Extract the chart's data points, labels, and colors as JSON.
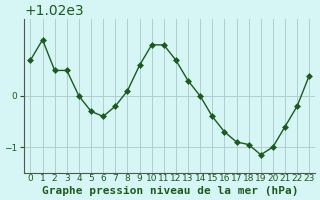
{
  "x": [
    0,
    1,
    2,
    3,
    4,
    5,
    6,
    7,
    8,
    9,
    10,
    11,
    12,
    13,
    14,
    15,
    16,
    17,
    18,
    19,
    20,
    21,
    22,
    23
  ],
  "y": [
    1020.7,
    1021.1,
    1020.5,
    1020.5,
    1020.0,
    1019.7,
    1019.6,
    1019.8,
    1020.1,
    1020.6,
    1021.0,
    1021.0,
    1020.7,
    1020.3,
    1020.0,
    1019.6,
    1019.3,
    1019.1,
    1019.05,
    1018.85,
    1019.0,
    1019.4,
    1019.8,
    1020.4
  ],
  "line_color": "#1a5c1a",
  "marker": "D",
  "marker_size": 3,
  "bg_color": "#d6f5f5",
  "grid_color": "#b0cece",
  "xlabel": "Graphe pression niveau de la mer (hPa)",
  "xlabel_fontsize": 8,
  "tick_fontsize": 6.5,
  "ylabel_ticks": [
    1019,
    1020
  ],
  "ylim": [
    1018.5,
    1021.5
  ],
  "xlim": [
    -0.5,
    23.5
  ],
  "xtick_labels": [
    "0",
    "1",
    "2",
    "3",
    "4",
    "5",
    "6",
    "7",
    "8",
    "9",
    "10",
    "11",
    "12",
    "13",
    "14",
    "15",
    "16",
    "17",
    "18",
    "19",
    "20",
    "21",
    "22",
    "23"
  ]
}
